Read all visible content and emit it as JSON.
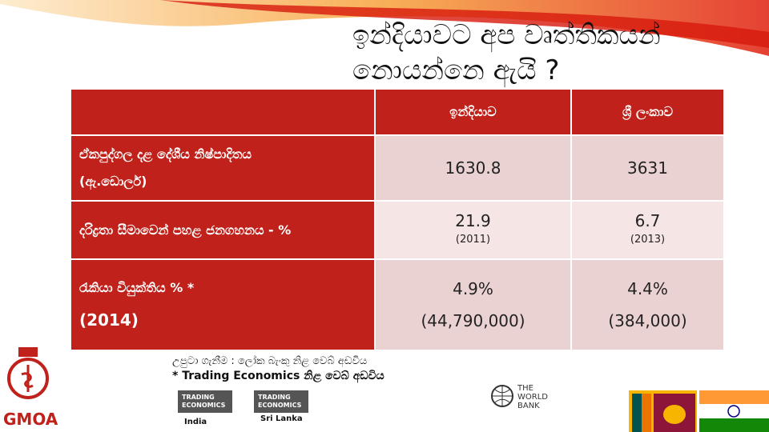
{
  "header": {
    "title_lines": [
      "ඉන්දියාවට අප වෘත්තිකයන්",
      "නොයන්නෙ ඇයි ?"
    ]
  },
  "table": {
    "columns": [
      "ඉන්දියාව",
      "ශ්‍රී ලංකාව"
    ],
    "rows": [
      {
        "label": [
          "ඒකපුද්ගල දළ දේශීය නිෂ්පාදිතය",
          "(ඇ.ඩොලර්)"
        ],
        "cells": [
          [
            "1630.8"
          ],
          [
            "3631"
          ]
        ]
      },
      {
        "label": [
          "දරිද්‍රතා සීමාවෙන් පහළ ජනගහනය  - %"
        ],
        "cells": [
          [
            "21.9",
            "(2011)"
          ],
          [
            "6.7",
            "(2013)"
          ]
        ]
      },
      {
        "label": [
          "රැකියා වියුක්තිය % *",
          "(2014)"
        ],
        "cells": [
          [
            "4.9%",
            "(44,790,000)"
          ],
          [
            "4.4%",
            "(384,000)"
          ]
        ]
      }
    ]
  },
  "sources": [
    "උපුටා ගැනීම : ලෝක බැංකු නිළ වෙබ් අඩවිය",
    "* Trading Economics නිළ වෙබ් අඩවිය"
  ],
  "logos": {
    "trading_economics": [
      "TRADING",
      "ECONOMICS"
    ],
    "te_captions": [
      "India",
      "Sri Lanka"
    ],
    "world_bank": [
      "THE",
      "WORLD",
      "BANK"
    ],
    "gmoa": "GMOA"
  }
}
